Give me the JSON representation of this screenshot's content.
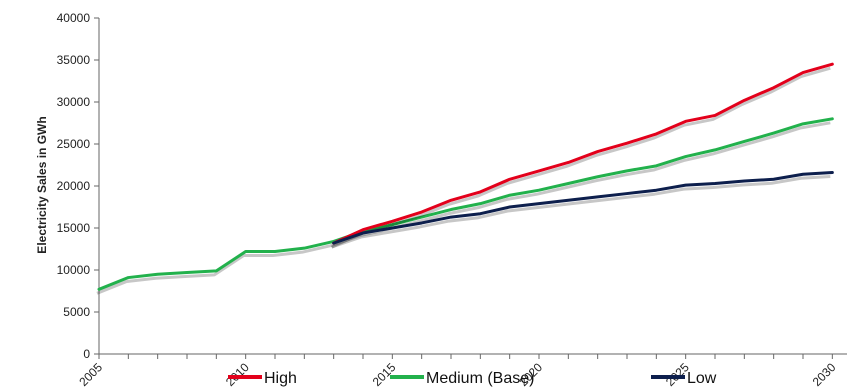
{
  "chart_data": {
    "type": "line",
    "title": "",
    "xlabel": "",
    "ylabel": "Electricity Sales in GWh",
    "xlim": [
      2005,
      2030.5
    ],
    "ylim": [
      0,
      40000
    ],
    "x_ticks": [
      2005,
      2010,
      2015,
      2020,
      2025,
      2030
    ],
    "y_ticks": [
      0,
      5000,
      10000,
      15000,
      20000,
      25000,
      30000,
      35000,
      40000
    ],
    "grid": false,
    "legend_position": "bottom",
    "series": [
      {
        "name": "High",
        "color": "#e3001b",
        "x": [
          2013,
          2014,
          2015,
          2016,
          2017,
          2018,
          2019,
          2020,
          2021,
          2022,
          2023,
          2024,
          2025,
          2026,
          2027,
          2028,
          2029,
          2030
        ],
        "y": [
          13200,
          14800,
          15800,
          16900,
          18300,
          19300,
          20800,
          21800,
          22800,
          24100,
          25100,
          26200,
          27700,
          28400,
          30200,
          31700,
          33500,
          34500
        ]
      },
      {
        "name": "Medium (Base)",
        "color": "#22b14c",
        "x": [
          2005,
          2006,
          2007,
          2008,
          2009,
          2010,
          2011,
          2012,
          2013,
          2014,
          2015,
          2016,
          2017,
          2018,
          2019,
          2020,
          2021,
          2022,
          2023,
          2024,
          2025,
          2026,
          2027,
          2028,
          2029,
          2030
        ],
        "y": [
          7700,
          9100,
          9500,
          9700,
          9900,
          12200,
          12200,
          12600,
          13400,
          14600,
          15400,
          16300,
          17200,
          17900,
          18900,
          19500,
          20300,
          21100,
          21800,
          22400,
          23500,
          24300,
          25300,
          26300,
          27400,
          28000
        ]
      },
      {
        "name": "Low",
        "color": "#0d1f4d",
        "x": [
          2013,
          2014,
          2015,
          2016,
          2017,
          2018,
          2019,
          2020,
          2021,
          2022,
          2023,
          2024,
          2025,
          2026,
          2027,
          2028,
          2029,
          2030
        ],
        "y": [
          13200,
          14400,
          15000,
          15600,
          16300,
          16700,
          17500,
          17900,
          18300,
          18700,
          19100,
          19500,
          20100,
          20300,
          20600,
          20800,
          21400,
          21600
        ]
      }
    ]
  }
}
